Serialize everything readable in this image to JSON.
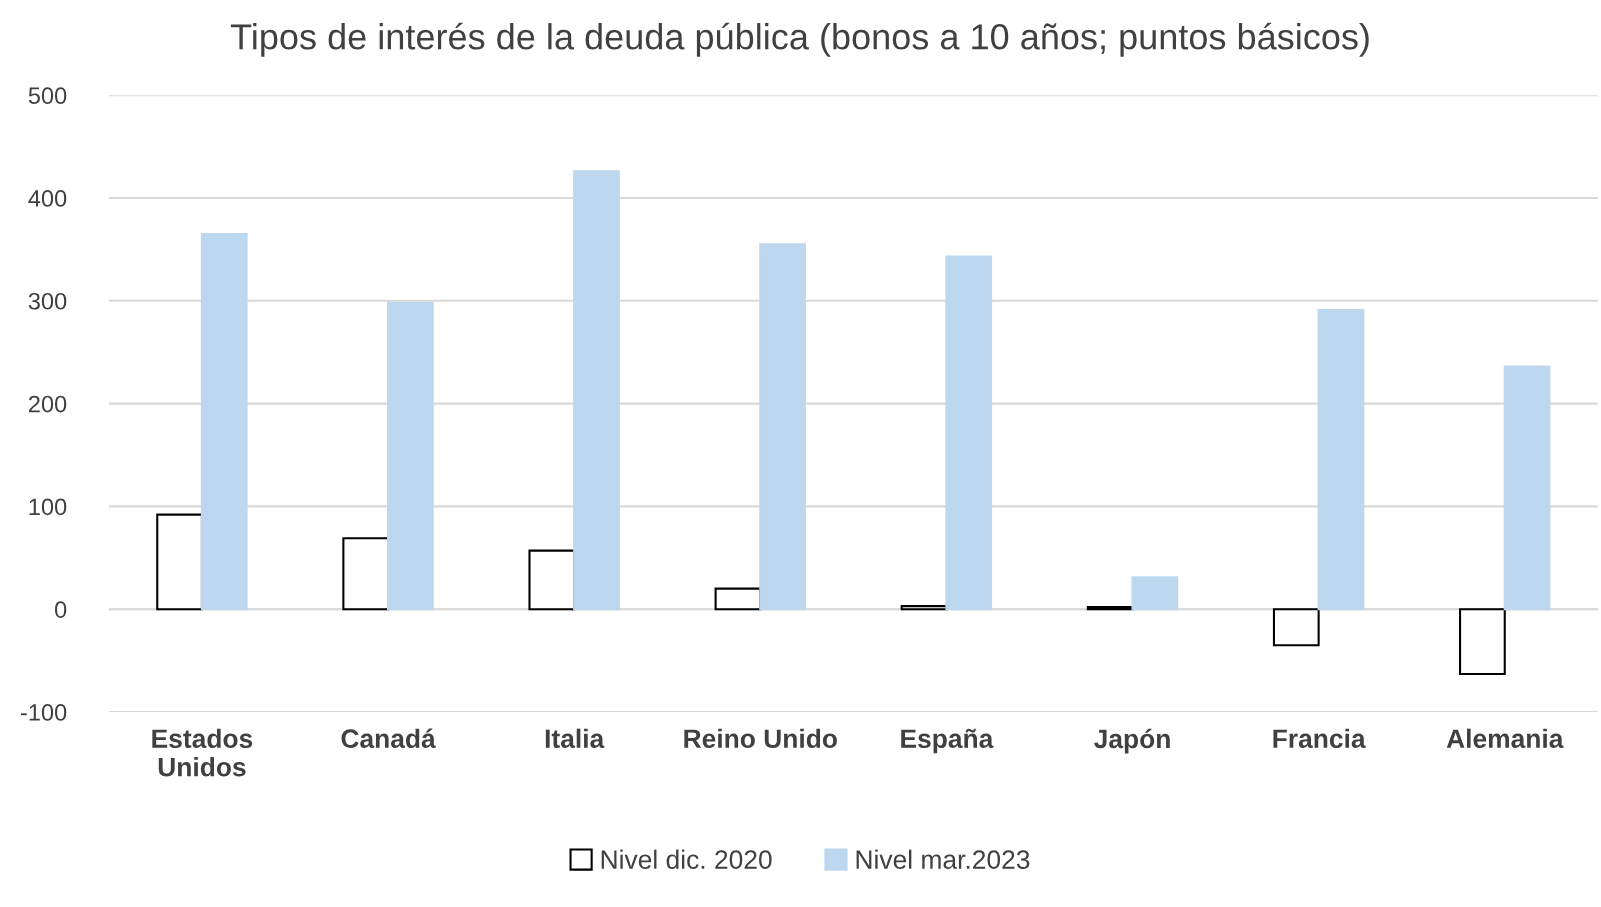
{
  "chart_data": {
    "type": "bar",
    "title": "Tipos de interés de la deuda pública (bonos a 10 años; puntos básicos)",
    "categories": [
      "Estados Unidos",
      "Canadá",
      "Italia",
      "Reino Unido",
      "España",
      "Japón",
      "Francia",
      "Alemania"
    ],
    "series": [
      {
        "name": "Nivel dic. 2020",
        "color": "#ffffff",
        "values": [
          92,
          69,
          57,
          20,
          3,
          2,
          -35,
          -63
        ]
      },
      {
        "name": "Nivel mar.2023",
        "color": "#bdd7ee",
        "values": [
          365,
          298,
          426,
          355,
          343,
          31,
          291,
          236
        ]
      }
    ],
    "ylim": [
      -100,
      500
    ],
    "yticks": [
      -100,
      0,
      100,
      200,
      300,
      400,
      500
    ],
    "grid": "y",
    "legend": "bottom"
  }
}
